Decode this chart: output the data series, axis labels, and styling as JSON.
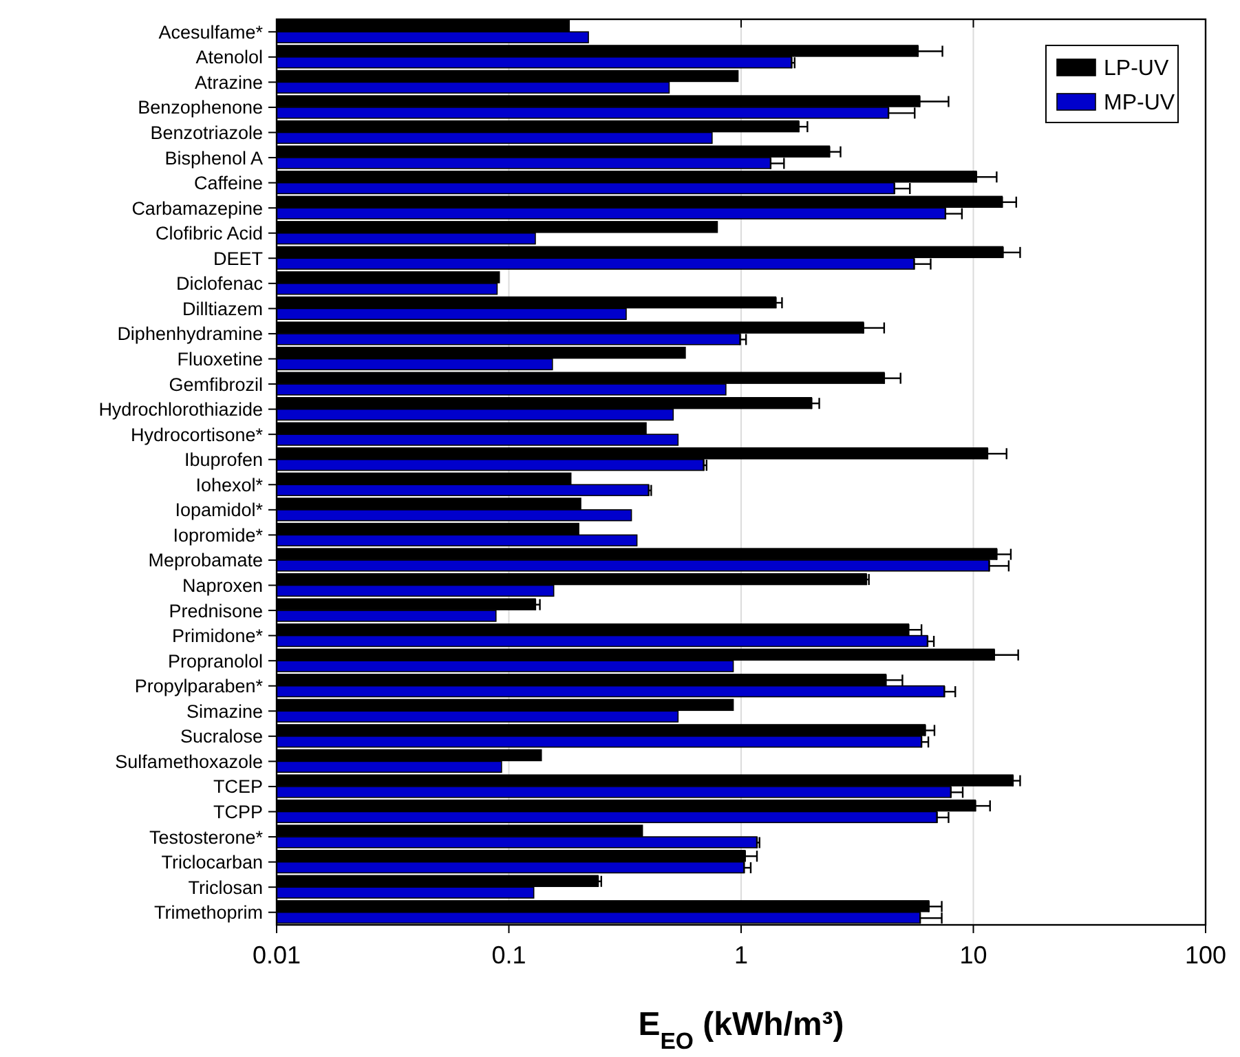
{
  "chart_data": {
    "type": "bar",
    "orientation": "horizontal",
    "xlabel": "E$_{EO}$ (kWh/m³)",
    "log": "x",
    "grid": "x",
    "legend": "top right",
    "xlim": [
      0.01,
      100
    ],
    "xticks": [
      0.01,
      0.1,
      1,
      10,
      100
    ],
    "categories": [
      "Acesulfame*",
      "Atenolol",
      "Atrazine",
      "Benzophenone",
      "Benzotriazole",
      "Bisphenol A",
      "Caffeine",
      "Carbamazepine",
      "Clofibric Acid",
      "DEET",
      "Diclofenac",
      "Dilltiazem",
      "Diphenhydramine",
      "Fluoxetine",
      "Gemfibrozil",
      "Hydrochlorothiazide",
      "Hydrocortisone*",
      "Ibuprofen",
      "Iohexol*",
      "Iopamidol*",
      "Iopromide*",
      "Meprobamate",
      "Naproxen",
      "Prednisone",
      "Primidone*",
      "Propranolol",
      "Propylparaben*",
      "Simazine",
      "Sucralose",
      "Sulfamethoxazole",
      "TCEP",
      "TCPP",
      "Testosterone*",
      "Triclocarban",
      "Triclosan",
      "Trimethoprim"
    ],
    "series": [
      {
        "name": "LP-UV",
        "color": "#000000",
        "values": [
          0.182,
          5.77,
          0.97,
          5.87,
          1.77,
          2.4,
          10.3,
          13.3,
          0.79,
          13.4,
          0.091,
          1.41,
          3.36,
          0.575,
          4.13,
          2.01,
          0.39,
          11.5,
          0.185,
          0.204,
          0.2,
          12.6,
          3.46,
          0.13,
          5.26,
          12.3,
          4.2,
          0.925,
          6.2,
          0.138,
          14.8,
          10.2,
          0.376,
          1.04,
          0.242,
          6.43
        ],
        "errors": [
          null,
          [
            5.77,
            7.36
          ],
          null,
          [
            5.87,
            7.82
          ],
          [
            1.77,
            1.93
          ],
          [
            2.4,
            2.68
          ],
          [
            10.3,
            12.6
          ],
          [
            13.3,
            15.3
          ],
          null,
          [
            13.4,
            15.9
          ],
          null,
          [
            1.41,
            1.5
          ],
          [
            3.36,
            4.13
          ],
          null,
          [
            4.13,
            4.86
          ],
          [
            2.01,
            2.17
          ],
          null,
          [
            11.5,
            13.9
          ],
          null,
          null,
          null,
          [
            12.6,
            14.5
          ],
          [
            3.46,
            3.55
          ],
          [
            0.13,
            0.136
          ],
          [
            5.26,
            5.98
          ],
          [
            12.3,
            15.6
          ],
          [
            4.2,
            4.95
          ],
          null,
          [
            6.2,
            6.8
          ],
          null,
          [
            14.8,
            15.9
          ],
          [
            10.2,
            11.8
          ],
          null,
          [
            1.04,
            1.17
          ],
          [
            0.242,
            0.25
          ],
          [
            6.43,
            7.31
          ]
        ]
      },
      {
        "name": "MP-UV",
        "color": "#0000cc",
        "values": [
          0.22,
          1.65,
          0.49,
          4.31,
          0.75,
          1.34,
          4.57,
          7.58,
          0.13,
          5.56,
          0.089,
          0.32,
          0.99,
          0.154,
          0.86,
          0.51,
          0.535,
          0.69,
          0.4,
          0.337,
          0.356,
          11.7,
          0.156,
          0.088,
          6.35,
          0.925,
          7.5,
          0.535,
          5.98,
          0.093,
          8.0,
          6.97,
          1.17,
          1.03,
          0.128,
          5.9
        ],
        "errors": [
          null,
          [
            1.65,
            1.7
          ],
          null,
          [
            4.31,
            5.59
          ],
          null,
          [
            1.34,
            1.53
          ],
          [
            4.57,
            5.33
          ],
          [
            7.58,
            8.93
          ],
          null,
          [
            5.56,
            6.55
          ],
          null,
          null,
          [
            0.99,
            1.05
          ],
          null,
          null,
          null,
          null,
          [
            0.69,
            0.71
          ],
          [
            0.4,
            0.41
          ],
          null,
          null,
          [
            11.7,
            14.2
          ],
          null,
          null,
          [
            6.35,
            6.76
          ],
          null,
          [
            7.5,
            8.36
          ],
          null,
          [
            5.98,
            6.4
          ],
          null,
          [
            8.0,
            9.0
          ],
          [
            6.97,
            7.82
          ],
          [
            1.17,
            1.2
          ],
          [
            1.03,
            1.1
          ],
          null,
          [
            5.9,
            7.31
          ]
        ]
      }
    ]
  }
}
